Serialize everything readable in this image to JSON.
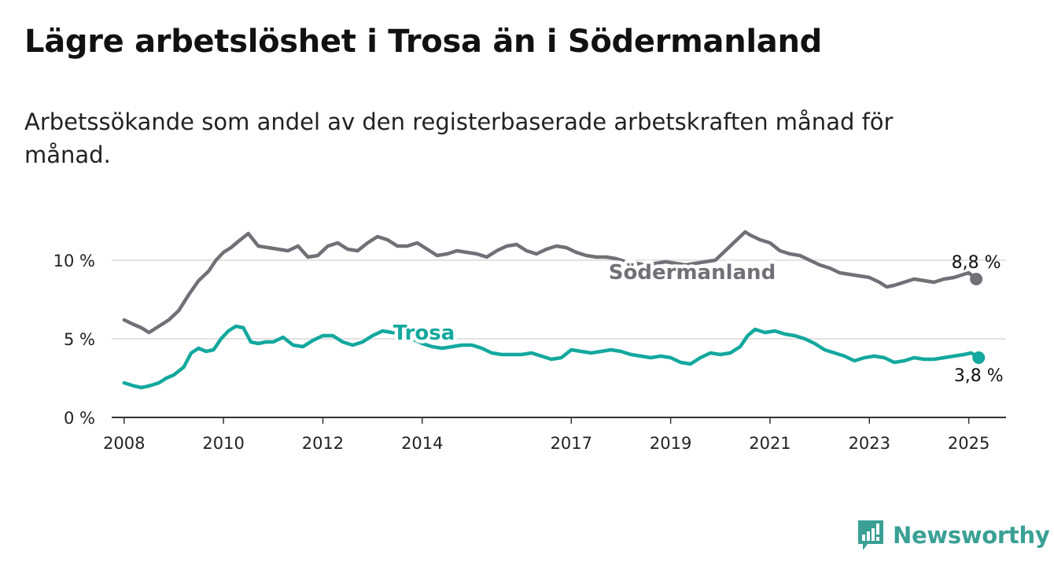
{
  "title": "Lägre arbetslöshet i Trosa än i Södermanland",
  "subtitle": "Arbetssökande som andel av den registerbaserade arbetskraften månad för månad.",
  "brand": {
    "name": "Newsworthy",
    "icon": "newsworthy-bar-chart-icon",
    "color": "#3aa095"
  },
  "chart_data": {
    "type": "line",
    "xlim": [
      2007.75,
      2025.75
    ],
    "ylim": [
      0,
      13
    ],
    "grid": true,
    "x_ticks": [
      2008,
      2010,
      2012,
      2014,
      2017,
      2019,
      2021,
      2023,
      2025
    ],
    "x_tick_labels": [
      "2008",
      "2010",
      "2012",
      "2014",
      "2017",
      "2019",
      "2021",
      "2023",
      "2025"
    ],
    "y_ticks": [
      0,
      5,
      10
    ],
    "y_tick_labels": [
      "0 %",
      "5 %",
      "10 %"
    ],
    "series": [
      {
        "name": "Södermanland",
        "color": "#707076",
        "end_label": "8,8 %",
        "x": [
          2008.0,
          2008.2,
          2008.35,
          2008.5,
          2008.7,
          2008.9,
          2009.1,
          2009.3,
          2009.5,
          2009.7,
          2009.85,
          2010.0,
          2010.15,
          2010.3,
          2010.5,
          2010.7,
          2010.9,
          2011.1,
          2011.3,
          2011.5,
          2011.7,
          2011.9,
          2012.1,
          2012.3,
          2012.5,
          2012.7,
          2012.9,
          2013.1,
          2013.3,
          2013.5,
          2013.7,
          2013.9,
          2014.1,
          2014.3,
          2014.5,
          2014.7,
          2014.9,
          2015.1,
          2015.3,
          2015.5,
          2015.7,
          2015.9,
          2016.1,
          2016.3,
          2016.5,
          2016.7,
          2016.9,
          2017.1,
          2017.3,
          2017.5,
          2017.7,
          2017.9,
          2018.1,
          2018.3,
          2018.5,
          2018.7,
          2018.9,
          2019.1,
          2019.3,
          2019.5,
          2019.7,
          2019.9,
          2020.1,
          2020.3,
          2020.5,
          2020.6,
          2020.8,
          2021.0,
          2021.2,
          2021.4,
          2021.6,
          2021.8,
          2022.0,
          2022.2,
          2022.4,
          2022.6,
          2022.8,
          2023.0,
          2023.2,
          2023.35,
          2023.5,
          2023.7,
          2023.9,
          2024.1,
          2024.3,
          2024.5,
          2024.7,
          2024.9,
          2025.0,
          2025.15
        ],
        "y": [
          6.2,
          5.9,
          5.7,
          5.4,
          5.8,
          6.2,
          6.8,
          7.8,
          8.7,
          9.3,
          10.0,
          10.5,
          10.8,
          11.2,
          11.7,
          10.9,
          10.8,
          10.7,
          10.6,
          10.9,
          10.2,
          10.3,
          10.9,
          11.1,
          10.7,
          10.6,
          11.1,
          11.5,
          11.3,
          10.9,
          10.9,
          11.1,
          10.7,
          10.3,
          10.4,
          10.6,
          10.5,
          10.4,
          10.2,
          10.6,
          10.9,
          11.0,
          10.6,
          10.4,
          10.7,
          10.9,
          10.8,
          10.5,
          10.3,
          10.2,
          10.2,
          10.1,
          9.9,
          9.8,
          9.7,
          9.8,
          9.9,
          9.8,
          9.7,
          9.8,
          9.9,
          10.0,
          10.6,
          11.2,
          11.8,
          11.6,
          11.3,
          11.1,
          10.6,
          10.4,
          10.3,
          10.0,
          9.7,
          9.5,
          9.2,
          9.1,
          9.0,
          8.9,
          8.6,
          8.3,
          8.4,
          8.6,
          8.8,
          8.7,
          8.6,
          8.8,
          8.9,
          9.1,
          9.2,
          8.8
        ]
      },
      {
        "name": "Trosa",
        "color": "#13a89e",
        "end_label": "3,8 %",
        "x": [
          2008.0,
          2008.2,
          2008.35,
          2008.5,
          2008.7,
          2008.85,
          2009.0,
          2009.2,
          2009.35,
          2009.5,
          2009.65,
          2009.8,
          2009.95,
          2010.1,
          2010.25,
          2010.4,
          2010.55,
          2010.7,
          2010.85,
          2011.0,
          2011.2,
          2011.4,
          2011.6,
          2011.8,
          2012.0,
          2012.2,
          2012.4,
          2012.6,
          2012.8,
          2013.0,
          2013.2,
          2013.4,
          2013.6,
          2013.8,
          2014.0,
          2014.2,
          2014.4,
          2014.6,
          2014.8,
          2015.0,
          2015.2,
          2015.4,
          2015.6,
          2015.8,
          2016.0,
          2016.2,
          2016.4,
          2016.6,
          2016.8,
          2017.0,
          2017.2,
          2017.4,
          2017.6,
          2017.8,
          2018.0,
          2018.2,
          2018.4,
          2018.6,
          2018.8,
          2019.0,
          2019.2,
          2019.4,
          2019.6,
          2019.8,
          2020.0,
          2020.2,
          2020.4,
          2020.55,
          2020.7,
          2020.9,
          2021.1,
          2021.3,
          2021.5,
          2021.7,
          2021.9,
          2022.1,
          2022.3,
          2022.5,
          2022.7,
          2022.9,
          2023.1,
          2023.3,
          2023.5,
          2023.7,
          2023.9,
          2024.1,
          2024.3,
          2024.5,
          2024.7,
          2024.9,
          2025.05,
          2025.2
        ],
        "y": [
          2.2,
          2.0,
          1.9,
          2.0,
          2.2,
          2.5,
          2.7,
          3.2,
          4.1,
          4.4,
          4.2,
          4.3,
          5.0,
          5.5,
          5.8,
          5.7,
          4.8,
          4.7,
          4.8,
          4.8,
          5.1,
          4.6,
          4.5,
          4.9,
          5.2,
          5.2,
          4.8,
          4.6,
          4.8,
          5.2,
          5.5,
          5.4,
          5.3,
          5.0,
          4.7,
          4.5,
          4.4,
          4.5,
          4.6,
          4.6,
          4.4,
          4.1,
          4.0,
          4.0,
          4.0,
          4.1,
          3.9,
          3.7,
          3.8,
          4.3,
          4.2,
          4.1,
          4.2,
          4.3,
          4.2,
          4.0,
          3.9,
          3.8,
          3.9,
          3.8,
          3.5,
          3.4,
          3.8,
          4.1,
          4.0,
          4.1,
          4.5,
          5.2,
          5.6,
          5.4,
          5.5,
          5.3,
          5.2,
          5.0,
          4.7,
          4.3,
          4.1,
          3.9,
          3.6,
          3.8,
          3.9,
          3.8,
          3.5,
          3.6,
          3.8,
          3.7,
          3.7,
          3.8,
          3.9,
          4.0,
          4.1,
          3.8
        ]
      }
    ]
  }
}
